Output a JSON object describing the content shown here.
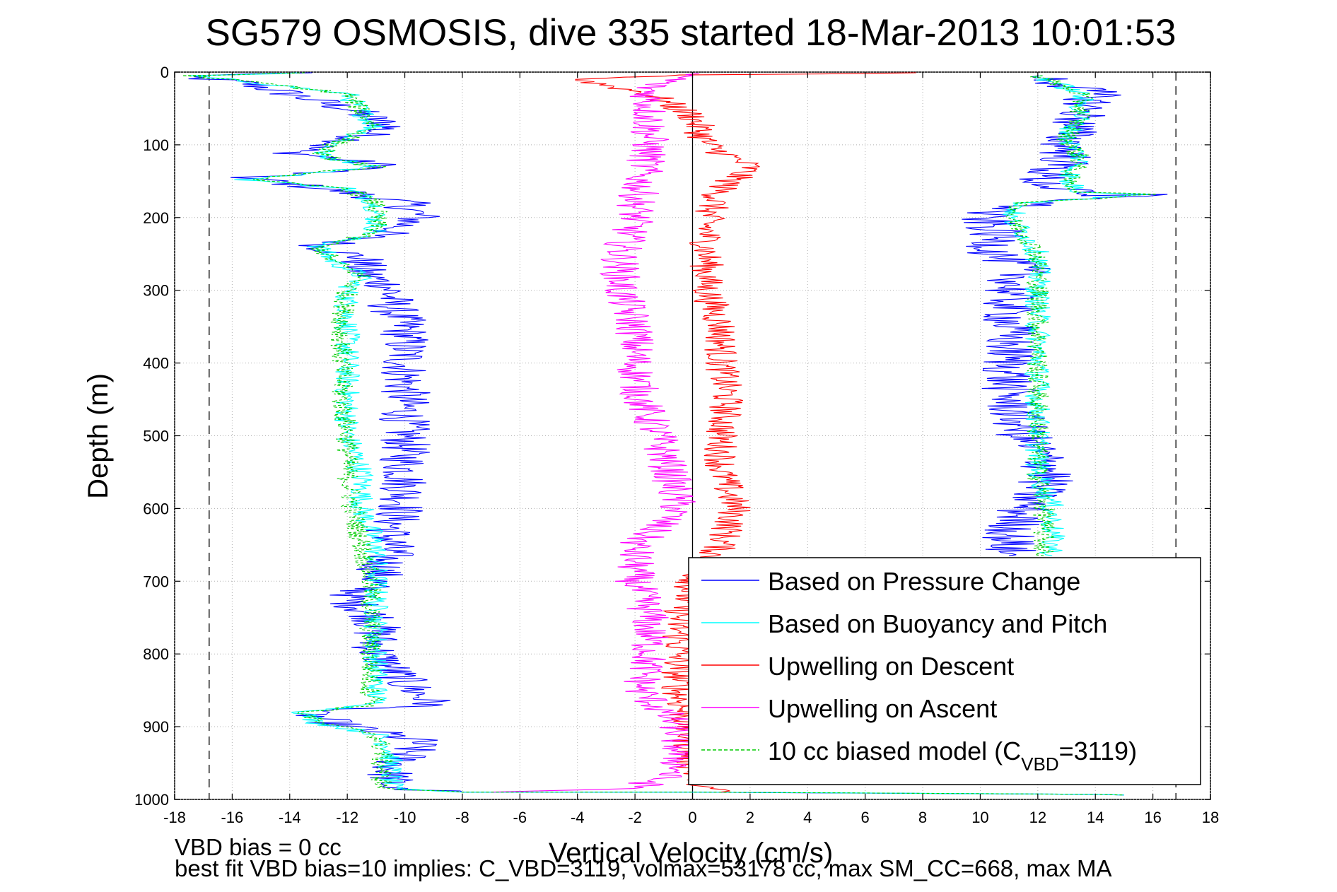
{
  "chart_data": {
    "type": "line",
    "title": "SG579 OSMOSIS, dive 335 started 18-Mar-2013 10:01:53",
    "xlabel": "Vertical Velocity (cm/s)",
    "ylabel": "Depth (m)",
    "xlim": [
      -18,
      18
    ],
    "ylim": [
      0,
      1000
    ],
    "y_reversed": true,
    "xticks": [
      "-18",
      "-16",
      "-14",
      "-12",
      "-10",
      "-8",
      "-6",
      "-4",
      "-2",
      "0",
      "2",
      "4",
      "6",
      "8",
      "10",
      "12",
      "14",
      "16",
      "18"
    ],
    "yticks": [
      "0",
      "100",
      "200",
      "300",
      "400",
      "500",
      "600",
      "700",
      "800",
      "900",
      "1000"
    ],
    "grid": "dotted",
    "legend_position": "bottom-right",
    "reference_lines": [
      {
        "kind": "vertical-dashed",
        "x": -16.8
      },
      {
        "kind": "vertical-dashed",
        "x": 16.8
      },
      {
        "kind": "vertical-solid",
        "x": 0
      }
    ],
    "series": [
      {
        "name": "Based on Pressure Change",
        "color": "#0000ff",
        "style": "solid",
        "noise": 0.9,
        "points": [
          [
            -13.5,
            1
          ],
          [
            -18,
            5
          ],
          [
            -15.5,
            15
          ],
          [
            -14,
            30
          ],
          [
            -12,
            50
          ],
          [
            -10.5,
            75
          ],
          [
            -12,
            95
          ],
          [
            -14,
            110
          ],
          [
            -10.5,
            130
          ],
          [
            -15.5,
            145
          ],
          [
            -12,
            165
          ],
          [
            -10,
            180
          ],
          [
            -9.5,
            200
          ],
          [
            -10.5,
            220
          ],
          [
            -13,
            240
          ],
          [
            -11.5,
            255
          ],
          [
            -11.5,
            275
          ],
          [
            -10.5,
            295
          ],
          [
            -10.5,
            320
          ],
          [
            -10,
            350
          ],
          [
            -10,
            400
          ],
          [
            -10,
            450
          ],
          [
            -10,
            500
          ],
          [
            -10,
            550
          ],
          [
            -10,
            590
          ],
          [
            -10.5,
            630
          ],
          [
            -10.5,
            660
          ],
          [
            -11,
            700
          ],
          [
            -12,
            725
          ],
          [
            -11,
            750
          ],
          [
            -11,
            800
          ],
          [
            -10,
            840
          ],
          [
            -9,
            870
          ],
          [
            -13.5,
            880
          ],
          [
            -12.5,
            895
          ],
          [
            -9.5,
            920
          ],
          [
            -10.5,
            960
          ],
          [
            -10.5,
            985
          ],
          [
            -8,
            990
          ],
          [
            0,
            990
          ],
          [
            4,
            991
          ],
          [
            14,
            993
          ],
          [
            15,
            994
          ]
        ]
      },
      {
        "name": "Based on Buoyancy and Pitch",
        "color": "#00ffff",
        "style": "solid",
        "noise": 0.45,
        "points": [
          [
            -13.5,
            1
          ],
          [
            -17.5,
            5
          ],
          [
            -15,
            15
          ],
          [
            -12,
            30
          ],
          [
            -11.5,
            55
          ],
          [
            -11,
            75
          ],
          [
            -12.5,
            100
          ],
          [
            -13,
            115
          ],
          [
            -11,
            130
          ],
          [
            -15.5,
            148
          ],
          [
            -12,
            160
          ],
          [
            -11,
            180
          ],
          [
            -11,
            220
          ],
          [
            -13,
            240
          ],
          [
            -12.5,
            260
          ],
          [
            -11.5,
            280
          ],
          [
            -12,
            300
          ],
          [
            -12,
            350
          ],
          [
            -12,
            400
          ],
          [
            -12,
            450
          ],
          [
            -12,
            500
          ],
          [
            -11.5,
            550
          ],
          [
            -11.5,
            600
          ],
          [
            -11,
            650
          ],
          [
            -11,
            700
          ],
          [
            -11,
            750
          ],
          [
            -11,
            800
          ],
          [
            -11,
            850
          ],
          [
            -11,
            870
          ],
          [
            -13.5,
            880
          ],
          [
            -13,
            895
          ],
          [
            -11,
            910
          ],
          [
            -10.5,
            930
          ],
          [
            -10.5,
            985
          ],
          [
            -8,
            990
          ],
          [
            0,
            990
          ],
          [
            5,
            991
          ],
          [
            14,
            993
          ],
          [
            15,
            994
          ]
        ]
      },
      {
        "name": "Upwelling on Descent",
        "color": "#ff0000",
        "style": "solid",
        "noise": 0.6,
        "points": [
          [
            8,
            1
          ],
          [
            0,
            4
          ],
          [
            -4,
            10
          ],
          [
            -1.5,
            30
          ],
          [
            0,
            60
          ],
          [
            0.5,
            100
          ],
          [
            2,
            130
          ],
          [
            1,
            160
          ],
          [
            0.5,
            200
          ],
          [
            0.5,
            250
          ],
          [
            0.5,
            300
          ],
          [
            1,
            350
          ],
          [
            1,
            400
          ],
          [
            1.2,
            450
          ],
          [
            1,
            500
          ],
          [
            1,
            550
          ],
          [
            1.5,
            600
          ],
          [
            1,
            650
          ],
          [
            0,
            700
          ],
          [
            -0.5,
            750
          ],
          [
            -0.5,
            800
          ],
          [
            -0.5,
            850
          ],
          [
            -0.2,
            900
          ],
          [
            0,
            960
          ],
          [
            0.5,
            985
          ],
          [
            1,
            990
          ]
        ]
      },
      {
        "name": "Upwelling on Ascent",
        "color": "#ff00ff",
        "style": "solid",
        "noise": 0.7,
        "points": [
          [
            0,
            2
          ],
          [
            -1.5,
            20
          ],
          [
            -1.5,
            60
          ],
          [
            -1.5,
            100
          ],
          [
            -1.8,
            150
          ],
          [
            -2,
            200
          ],
          [
            -2.5,
            250
          ],
          [
            -2.5,
            300
          ],
          [
            -2,
            350
          ],
          [
            -2,
            400
          ],
          [
            -1.8,
            450
          ],
          [
            -1.2,
            500
          ],
          [
            -0.8,
            550
          ],
          [
            -0.5,
            600
          ],
          [
            -2,
            650
          ],
          [
            -2,
            700
          ],
          [
            -1.5,
            750
          ],
          [
            -1.5,
            800
          ],
          [
            -1.8,
            850
          ],
          [
            -0.5,
            900
          ],
          [
            -0.5,
            960
          ],
          [
            -2,
            985
          ],
          [
            -7,
            990
          ]
        ]
      },
      {
        "name": "10 cc biased model (C_VBD=3119)",
        "color": "#00cc00",
        "style": "dashed",
        "noise": 0.4,
        "points": [
          [
            -13.5,
            1
          ],
          [
            -17.5,
            5
          ],
          [
            -15,
            15
          ],
          [
            -12,
            30
          ],
          [
            -11.5,
            55
          ],
          [
            -11,
            75
          ],
          [
            -12.5,
            100
          ],
          [
            -13,
            115
          ],
          [
            -11,
            130
          ],
          [
            -15.5,
            148
          ],
          [
            -12,
            160
          ],
          [
            -11,
            180
          ],
          [
            -11,
            220
          ],
          [
            -13,
            240
          ],
          [
            -12.5,
            260
          ],
          [
            -11.5,
            280
          ],
          [
            -12,
            300
          ],
          [
            -12.2,
            350
          ],
          [
            -12.2,
            400
          ],
          [
            -12.2,
            450
          ],
          [
            -12,
            500
          ],
          [
            -12,
            550
          ],
          [
            -11.8,
            600
          ],
          [
            -11.5,
            650
          ],
          [
            -11.2,
            700
          ],
          [
            -11.2,
            750
          ],
          [
            -11.2,
            800
          ],
          [
            -11.2,
            850
          ],
          [
            -11,
            870
          ],
          [
            -13.5,
            880
          ],
          [
            -13,
            895
          ],
          [
            -11,
            910
          ],
          [
            -10.8,
            930
          ],
          [
            -10.8,
            985
          ],
          [
            -8,
            990
          ],
          [
            0,
            990
          ],
          [
            5,
            991
          ],
          [
            14,
            993
          ],
          [
            15,
            994
          ]
        ]
      },
      {
        "name": "",
        "color": "#0000ff",
        "style": "solid",
        "noise": 1.0,
        "points": [
          [
            12,
            5
          ],
          [
            14,
            30
          ],
          [
            13.5,
            60
          ],
          [
            13,
            90
          ],
          [
            13,
            120
          ],
          [
            12,
            150
          ],
          [
            13.5,
            170
          ],
          [
            16,
            168
          ],
          [
            12,
            180
          ],
          [
            10,
            195
          ],
          [
            10.5,
            220
          ],
          [
            10.5,
            250
          ],
          [
            11.5,
            270
          ],
          [
            11,
            300
          ],
          [
            11,
            350
          ],
          [
            11,
            400
          ],
          [
            11,
            450
          ],
          [
            11.5,
            500
          ],
          [
            12.5,
            550
          ],
          [
            11.5,
            600
          ],
          [
            11,
            640
          ],
          [
            11,
            665
          ]
        ]
      },
      {
        "name": "",
        "color": "#00ffff",
        "style": "solid",
        "noise": 0.45,
        "points": [
          [
            12,
            5
          ],
          [
            13.5,
            30
          ],
          [
            13.5,
            60
          ],
          [
            13,
            90
          ],
          [
            13.5,
            120
          ],
          [
            13,
            150
          ],
          [
            13.5,
            165
          ],
          [
            16,
            168
          ],
          [
            11.5,
            180
          ],
          [
            11,
            200
          ],
          [
            11.5,
            220
          ],
          [
            12,
            250
          ],
          [
            12,
            300
          ],
          [
            12,
            350
          ],
          [
            12,
            400
          ],
          [
            12,
            450
          ],
          [
            12,
            500
          ],
          [
            12,
            550
          ],
          [
            12.5,
            600
          ],
          [
            12.5,
            650
          ],
          [
            12.5,
            665
          ]
        ]
      },
      {
        "name": "",
        "color": "#00cc00",
        "style": "dashed",
        "noise": 0.4,
        "points": [
          [
            12,
            5
          ],
          [
            13.5,
            30
          ],
          [
            13.5,
            60
          ],
          [
            13,
            90
          ],
          [
            13.5,
            120
          ],
          [
            13,
            150
          ],
          [
            13.5,
            165
          ],
          [
            16,
            168
          ],
          [
            11.5,
            180
          ],
          [
            11,
            200
          ],
          [
            11.5,
            220
          ],
          [
            12,
            250
          ],
          [
            12,
            300
          ],
          [
            12,
            350
          ],
          [
            12,
            400
          ],
          [
            12,
            450
          ],
          [
            12,
            500
          ],
          [
            12,
            550
          ],
          [
            12.2,
            600
          ],
          [
            12.2,
            650
          ],
          [
            12.2,
            665
          ]
        ]
      }
    ],
    "legend": [
      {
        "label": "Based on Pressure Change",
        "color": "#0000ff",
        "style": "solid"
      },
      {
        "label": "Based on Buoyancy and Pitch",
        "color": "#00ffff",
        "style": "solid"
      },
      {
        "label": "Upwelling on Descent",
        "color": "#ff0000",
        "style": "solid"
      },
      {
        "label": "Upwelling on Ascent",
        "color": "#ff00ff",
        "style": "solid"
      },
      {
        "label": "10 cc biased model (C",
        "sub": "VBD",
        "tail": "=3119)",
        "color": "#00cc00",
        "style": "dashed"
      }
    ]
  },
  "footnotes": {
    "line1": "VBD bias = 0 cc",
    "line2": "best fit VBD bias=10 implies: C_VBD=3119, volmax=53178 cc, max SM_CC=668, max MA"
  }
}
